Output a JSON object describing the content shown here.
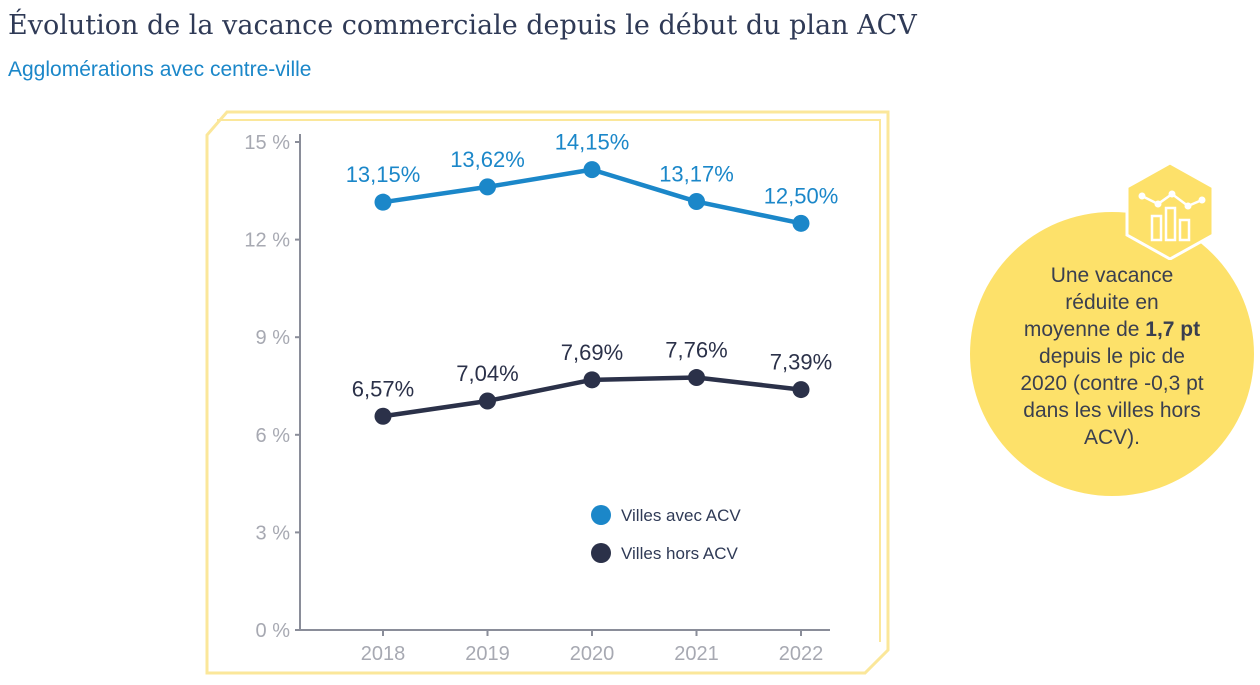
{
  "header": {
    "title": "Évolution de la vacance commerciale depuis le début du plan ACV",
    "subtitle": "Agglomérations avec centre-ville"
  },
  "colors": {
    "series_avec": "#1b87c9",
    "series_hors": "#2b3149",
    "axis": "#8a8d99",
    "tick_text": "#a7a9b2",
    "panel_border": "#fbe79a",
    "callout_bg": "#fde16a",
    "title": "#2f3a56"
  },
  "chart_data": {
    "type": "line",
    "categories": [
      "2018",
      "2019",
      "2020",
      "2021",
      "2022"
    ],
    "ylim": [
      0,
      15
    ],
    "yticks": [
      0,
      3,
      6,
      9,
      12,
      15
    ],
    "ytick_labels": [
      "0 %",
      "3 %",
      "6 %",
      "9 %",
      "12 %",
      "15 %"
    ],
    "grid": false,
    "legend_position": "bottom-right",
    "series": [
      {
        "name": "Villes avec ACV",
        "values": [
          13.15,
          13.62,
          14.15,
          13.17,
          12.5
        ],
        "labels": [
          "13,15%",
          "13,62%",
          "14,15%",
          "13,17%",
          "12,50%"
        ]
      },
      {
        "name": "Villes hors ACV",
        "values": [
          6.57,
          7.04,
          7.69,
          7.76,
          7.39
        ],
        "labels": [
          "6,57%",
          "7,04%",
          "7,69%",
          "7,76%",
          "7,39%"
        ]
      }
    ]
  },
  "callout": {
    "line1": "Une vacance",
    "line2": "réduite en",
    "line3_pre": "moyenne de ",
    "line3_bold": "1,7 pt",
    "line4": "depuis le pic de",
    "line5": "2020 (contre -0,3 pt",
    "line6": "dans les villes hors",
    "line7": "ACV).",
    "icon": "bar-line-chart-icon"
  }
}
